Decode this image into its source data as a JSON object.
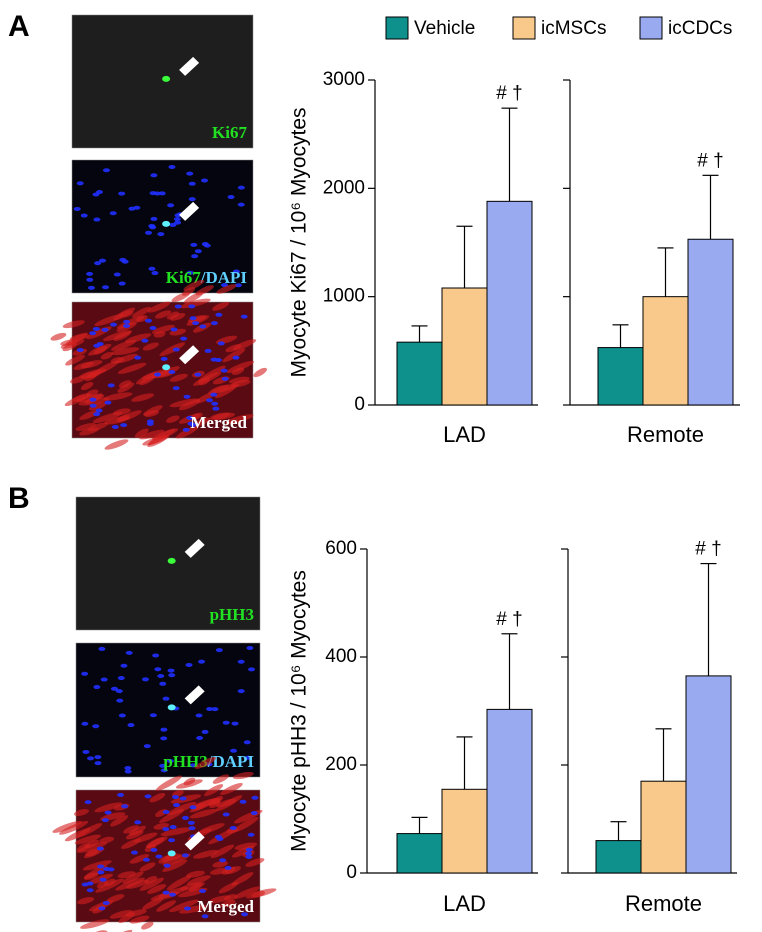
{
  "panels": [
    {
      "letter": "A",
      "images": [
        {
          "label": "Ki67"
        },
        {
          "label": "Ki67",
          "label2": "/DAPI"
        },
        {
          "label": "Merged"
        }
      ]
    },
    {
      "letter": "B",
      "images": [
        {
          "label": "pHH3"
        },
        {
          "label": "pHH3",
          "label2": "/DAPI"
        },
        {
          "label": "Merged"
        }
      ]
    }
  ],
  "chart_data": [
    {
      "type": "bar",
      "ylabel": "Myocyte Ki67 / 10⁶ Myocytes",
      "categories": [
        "LAD",
        "Remote"
      ],
      "series": [
        {
          "name": "Vehicle",
          "color": "#0e918c",
          "values": [
            580,
            530
          ],
          "errors": [
            150,
            210
          ]
        },
        {
          "name": "icMSCs",
          "color": "#f9c98b",
          "values": [
            1080,
            1000
          ],
          "errors": [
            570,
            450
          ]
        },
        {
          "name": "icCDCs",
          "color": "#99aaf0",
          "values": [
            1880,
            1530
          ],
          "errors": [
            860,
            590
          ]
        }
      ],
      "annotation": "# †",
      "ylim": [
        0,
        3000
      ],
      "yticks": [
        0,
        1000,
        2000,
        3000
      ]
    },
    {
      "type": "bar",
      "ylabel": "Myocyte pHH3 / 10⁶ Myocytes",
      "categories": [
        "LAD",
        "Remote"
      ],
      "series": [
        {
          "color": "#0e918c",
          "values": [
            73,
            60
          ],
          "errors": [
            30,
            35
          ]
        },
        {
          "color": "#f9c98b",
          "values": [
            155,
            170
          ],
          "errors": [
            97,
            97
          ]
        },
        {
          "color": "#99aaf0",
          "values": [
            303,
            365
          ],
          "errors": [
            140,
            208
          ]
        }
      ],
      "annotation": "# †",
      "ylim": [
        0,
        600
      ],
      "yticks": [
        0,
        200,
        400,
        600
      ]
    }
  ]
}
